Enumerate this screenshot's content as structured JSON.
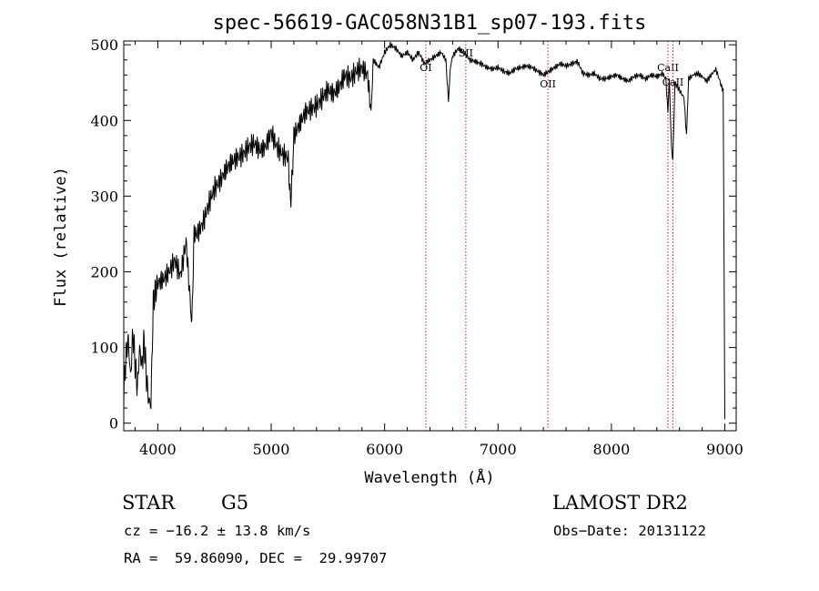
{
  "chart_data": {
    "type": "line",
    "title": "spec-56619-GAC058N31B1_sp07-193.fits",
    "xlabel": "Wavelength (Å)",
    "ylabel": "Flux (relative)",
    "xlim": [
      3700,
      9100
    ],
    "ylim": [
      -10,
      505
    ],
    "xticks": [
      4000,
      5000,
      6000,
      7000,
      8000,
      9000
    ],
    "yticks": [
      0,
      100,
      200,
      300,
      400,
      500
    ],
    "series": [
      {
        "name": "flux",
        "x": [
          3700,
          3720,
          3740,
          3760,
          3780,
          3800,
          3820,
          3840,
          3860,
          3880,
          3900,
          3920,
          3940,
          3960,
          3980,
          4000,
          4050,
          4100,
          4150,
          4200,
          4250,
          4300,
          4320,
          4350,
          4400,
          4450,
          4500,
          4550,
          4600,
          4650,
          4700,
          4750,
          4800,
          4850,
          4900,
          4950,
          5000,
          5050,
          5100,
          5150,
          5170,
          5190,
          5200,
          5250,
          5300,
          5350,
          5400,
          5450,
          5500,
          5550,
          5600,
          5650,
          5700,
          5750,
          5800,
          5850,
          5880,
          5900,
          5950,
          6000,
          6050,
          6100,
          6150,
          6200,
          6250,
          6300,
          6350,
          6400,
          6450,
          6500,
          6540,
          6563,
          6580,
          6600,
          6650,
          6700,
          6750,
          6800,
          6850,
          6900,
          6950,
          7000,
          7050,
          7100,
          7150,
          7200,
          7250,
          7300,
          7350,
          7400,
          7450,
          7500,
          7550,
          7600,
          7650,
          7700,
          7750,
          7800,
          7850,
          7900,
          7950,
          8000,
          8050,
          8100,
          8150,
          8200,
          8250,
          8300,
          8350,
          8400,
          8450,
          8480,
          8498,
          8510,
          8530,
          8542,
          8560,
          8600,
          8640,
          8662,
          8680,
          8720,
          8760,
          8800,
          8840,
          8880,
          8920,
          8950,
          8970,
          8985,
          8995,
          9000
        ],
        "y": [
          40,
          90,
          110,
          60,
          120,
          80,
          45,
          100,
          75,
          110,
          60,
          30,
          25,
          160,
          175,
          185,
          190,
          200,
          215,
          195,
          240,
          130,
          250,
          250,
          265,
          290,
          310,
          320,
          335,
          345,
          350,
          355,
          365,
          370,
          360,
          365,
          385,
          365,
          355,
          350,
          290,
          340,
          380,
          395,
          410,
          415,
          420,
          430,
          440,
          435,
          445,
          460,
          455,
          465,
          470,
          460,
          410,
          480,
          470,
          490,
          500,
          495,
          485,
          490,
          480,
          490,
          475,
          480,
          485,
          490,
          480,
          425,
          470,
          485,
          495,
          490,
          480,
          478,
          475,
          470,
          468,
          470,
          465,
          462,
          468,
          470,
          472,
          470,
          465,
          460,
          465,
          470,
          475,
          472,
          475,
          478,
          462,
          460,
          462,
          455,
          455,
          458,
          460,
          455,
          452,
          458,
          460,
          455,
          460,
          458,
          462,
          455,
          410,
          455,
          360,
          350,
          450,
          440,
          430,
          380,
          455,
          460,
          462,
          458,
          452,
          460,
          468,
          455,
          445,
          440,
          160,
          5
        ]
      }
    ],
    "lines": [
      {
        "label": "OI",
        "x": 6363
      },
      {
        "label": "SII",
        "x": 6716
      },
      {
        "label": "OII",
        "x": 7440
      },
      {
        "label": "CaII",
        "x": 8498
      },
      {
        "label": "CaII",
        "x": 8542
      }
    ]
  },
  "info": {
    "object_type": "STAR",
    "subclass": "G5",
    "survey": "LAMOST DR2",
    "cz": "cz = −16.2 ± 13.8 km/s",
    "obs_date": "Obs−Date: 20131122",
    "coords": "RA =  59.86090, DEC =  29.99707"
  },
  "colors": {
    "line": "#000000",
    "marker": "#cc2020"
  }
}
